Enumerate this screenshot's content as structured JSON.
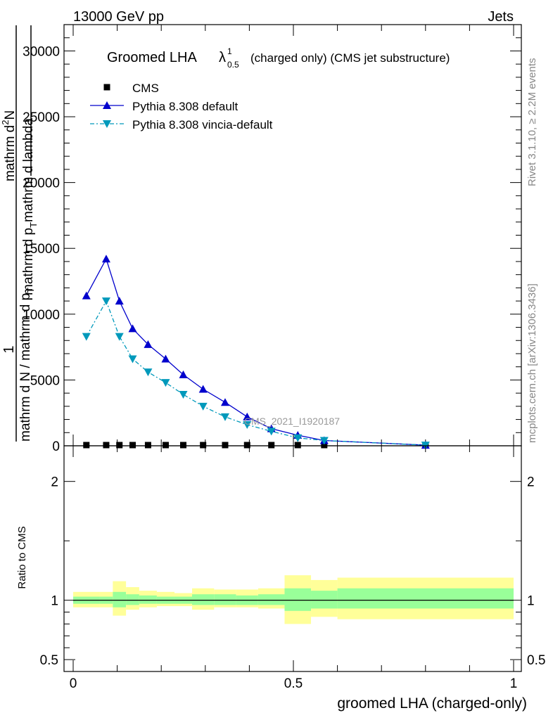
{
  "header": {
    "left": "13000 GeV pp",
    "right": "Jets"
  },
  "side_labels": {
    "rivet": "Rivet 3.1.10, ≥ 2.2M events",
    "mcplots": "mcplots.cern.ch [arXiv:1306.3436]"
  },
  "chart_data": [
    {
      "type": "line",
      "title_main": "Groomed LHA",
      "title_lambda": "λ",
      "title_sup": "1",
      "title_sub": "0.5",
      "title_extra": "(charged only) (CMS jet substructure)",
      "watermark": "CMS_2021_I1920187",
      "ylabel": {
        "frac_one": "1",
        "frac_mid": "mathrm d N / mathrm d p",
        "frac_mid_sub": "T",
        "frac_low": "mathrm d N",
        "second_top": "mathrm d",
        "second_top_sup": "2",
        "second_top_n": "N",
        "second_bottom": "mathrm d p",
        "second_bottom_sub": "T",
        "second_bottom_tail": "mathrm d lambda"
      },
      "xlim": [
        0,
        1
      ],
      "ylim": [
        0,
        32000
      ],
      "y_ticks": [
        {
          "value": 0,
          "label": "0"
        },
        {
          "value": 5000,
          "label": "5000"
        },
        {
          "value": 10000,
          "label": "10000"
        },
        {
          "value": 15000,
          "label": "15000"
        },
        {
          "value": 20000,
          "label": "20000"
        },
        {
          "value": 25000,
          "label": "25000"
        },
        {
          "value": 30000,
          "label": "30000"
        }
      ],
      "legend_position": "top-left",
      "series": [
        {
          "name": "CMS",
          "marker": "square",
          "color": "#000000",
          "x": [
            0.03,
            0.075,
            0.105,
            0.135,
            0.17,
            0.21,
            0.25,
            0.295,
            0.345,
            0.395,
            0.45,
            0.51,
            0.57,
            0.8
          ],
          "y": [
            0,
            0,
            0,
            0,
            0,
            0,
            0,
            0,
            0,
            0,
            0,
            0,
            0,
            0
          ]
        },
        {
          "name": "Pythia 8.308 default",
          "marker": "triangle-up",
          "color": "#0000cc",
          "dash": "",
          "x": [
            0.03,
            0.075,
            0.105,
            0.135,
            0.17,
            0.21,
            0.25,
            0.295,
            0.345,
            0.395,
            0.45,
            0.51,
            0.57,
            0.8
          ],
          "y": [
            11400,
            14200,
            11000,
            8900,
            7700,
            6600,
            5400,
            4300,
            3300,
            2200,
            1300,
            800,
            400,
            50
          ]
        },
        {
          "name": "Pythia 8.308 vincia-default",
          "marker": "triangle-down",
          "color": "#0099bb",
          "dash": "6,3,2,3",
          "x": [
            0.03,
            0.075,
            0.105,
            0.135,
            0.17,
            0.21,
            0.25,
            0.295,
            0.345,
            0.395,
            0.45,
            0.51,
            0.57,
            0.8
          ],
          "y": [
            8300,
            11000,
            8300,
            6600,
            5600,
            4800,
            3900,
            3000,
            2200,
            1600,
            1100,
            600,
            400,
            50
          ]
        }
      ]
    },
    {
      "type": "area",
      "ylabel": "Ratio to CMS",
      "xlabel": "groomed LHA (charged-only)",
      "xlim": [
        0,
        1
      ],
      "ylim": [
        0.4,
        2.3
      ],
      "x_ticks": [
        {
          "value": 0,
          "label": "0"
        },
        {
          "value": 0.5,
          "label": "0.5"
        },
        {
          "value": 1,
          "label": "1"
        }
      ],
      "y_ticks": [
        {
          "value": 0.5,
          "label": "0.5"
        },
        {
          "value": 1,
          "label": "1"
        },
        {
          "value": 2,
          "label": "2"
        }
      ],
      "reference_line": 1,
      "bands": {
        "inner_color": "#99ff99",
        "outer_color": "#ffff99",
        "edges": [
          0,
          0.06,
          0.09,
          0.12,
          0.15,
          0.19,
          0.23,
          0.27,
          0.32,
          0.37,
          0.42,
          0.48,
          0.54,
          0.6,
          1.0
        ],
        "outer_up": [
          1.07,
          1.07,
          1.16,
          1.11,
          1.08,
          1.07,
          1.06,
          1.1,
          1.09,
          1.09,
          1.1,
          1.21,
          1.17,
          1.19,
          1.19
        ],
        "outer_down": [
          0.94,
          0.94,
          0.87,
          0.92,
          0.94,
          0.95,
          0.95,
          0.92,
          0.94,
          0.94,
          0.93,
          0.8,
          0.86,
          0.84,
          0.84
        ],
        "inner_up": [
          1.03,
          1.03,
          1.07,
          1.05,
          1.04,
          1.03,
          1.03,
          1.05,
          1.05,
          1.04,
          1.05,
          1.1,
          1.08,
          1.1,
          1.1
        ],
        "inner_down": [
          0.97,
          0.97,
          0.94,
          0.96,
          0.97,
          0.97,
          0.97,
          0.96,
          0.96,
          0.96,
          0.96,
          0.91,
          0.93,
          0.93,
          0.93
        ]
      }
    }
  ]
}
